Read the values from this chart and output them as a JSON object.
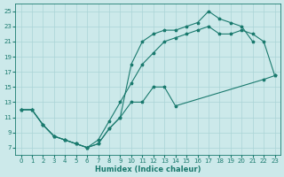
{
  "xlabel": "Humidex (Indice chaleur)",
  "background_color": "#cce9ea",
  "grid_color": "#aad4d6",
  "line_color": "#1a7a6e",
  "xlim": [
    -0.5,
    23.5
  ],
  "ylim": [
    6,
    26
  ],
  "xticks": [
    0,
    1,
    2,
    3,
    4,
    5,
    6,
    7,
    8,
    9,
    10,
    11,
    12,
    13,
    14,
    15,
    16,
    17,
    18,
    19,
    20,
    21,
    22,
    23
  ],
  "yticks": [
    7,
    9,
    11,
    13,
    15,
    17,
    19,
    21,
    23,
    25
  ],
  "line_upper_x": [
    0,
    1,
    2,
    3,
    4,
    5,
    6,
    7,
    8,
    9,
    10,
    11,
    12,
    13,
    14,
    15,
    16,
    17,
    18,
    19,
    20,
    21
  ],
  "line_upper_y": [
    12,
    12,
    10,
    8.5,
    8,
    7.5,
    7,
    7.5,
    9.5,
    11,
    18,
    21,
    22,
    22.5,
    22.5,
    23,
    23.5,
    25,
    24,
    23.5,
    23,
    21
  ],
  "line_mid_x": [
    0,
    1,
    2,
    3,
    4,
    5,
    6,
    7,
    8,
    9,
    10,
    11,
    12,
    13,
    14,
    15,
    16,
    17,
    18,
    19,
    20,
    21,
    22,
    23
  ],
  "line_mid_y": [
    12,
    12,
    10,
    8.5,
    8,
    7.5,
    7,
    8,
    10.5,
    13,
    15.5,
    18,
    19.5,
    21,
    21.5,
    22,
    22.5,
    23,
    22,
    22,
    22.5,
    22,
    21,
    16.5
  ],
  "line_lower_x": [
    0,
    1,
    2,
    3,
    4,
    5,
    6,
    7,
    8,
    9,
    10,
    11,
    12,
    13,
    14,
    22,
    23
  ],
  "line_lower_y": [
    12,
    12,
    10,
    8.5,
    8,
    7.5,
    7,
    7.5,
    9.5,
    11,
    13,
    13,
    15,
    15,
    12.5,
    16,
    16.5
  ]
}
